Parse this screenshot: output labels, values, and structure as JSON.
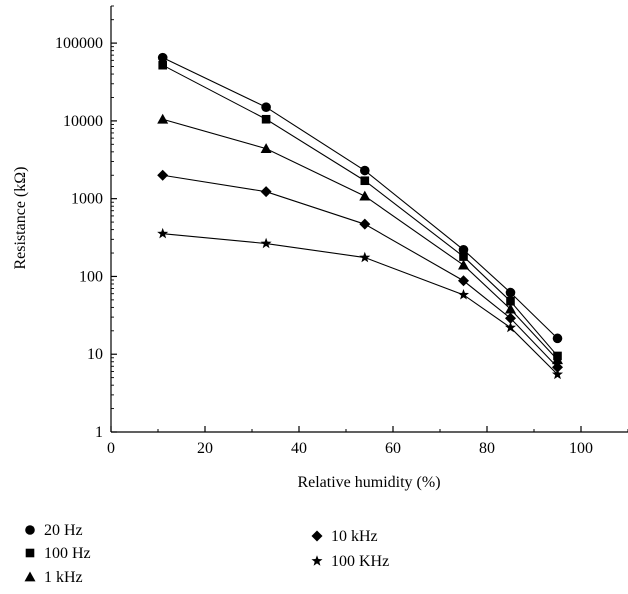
{
  "chart_data": {
    "type": "line",
    "xlabel": "Relative humidity (%)",
    "ylabel": "Resistance (kΩ)",
    "xlim": [
      0,
      110
    ],
    "ylim": [
      1,
      300000
    ],
    "yscale": "log",
    "x_ticks": [
      0,
      20,
      40,
      60,
      80,
      100
    ],
    "x_tick_labels": [
      "0",
      "20",
      "40",
      "60",
      "80",
      "100"
    ],
    "y_ticks": [
      1,
      10,
      100,
      1000,
      10000,
      100000
    ],
    "y_tick_labels": [
      "1",
      "10",
      "100",
      "1000",
      "10000",
      "100000"
    ],
    "grid": false,
    "legend_position": "below",
    "x": [
      11,
      33,
      54,
      75,
      85,
      95
    ],
    "series": [
      {
        "name": "20 Hz",
        "marker": "circle",
        "values": [
          65000,
          15000,
          2300,
          220,
          62,
          16
        ]
      },
      {
        "name": "100 Hz",
        "marker": "square",
        "values": [
          52000,
          10500,
          1700,
          180,
          48,
          9.5
        ]
      },
      {
        "name": "1 kHz",
        "marker": "triangle",
        "values": [
          10500,
          4400,
          1080,
          140,
          38,
          8.5
        ]
      },
      {
        "name": "10 kHz",
        "marker": "diamond",
        "values": [
          2000,
          1230,
          470,
          88,
          29,
          6.8
        ]
      },
      {
        "name": "100 KHz",
        "marker": "star",
        "values": [
          355,
          265,
          175,
          58,
          22,
          5.5
        ]
      }
    ]
  }
}
